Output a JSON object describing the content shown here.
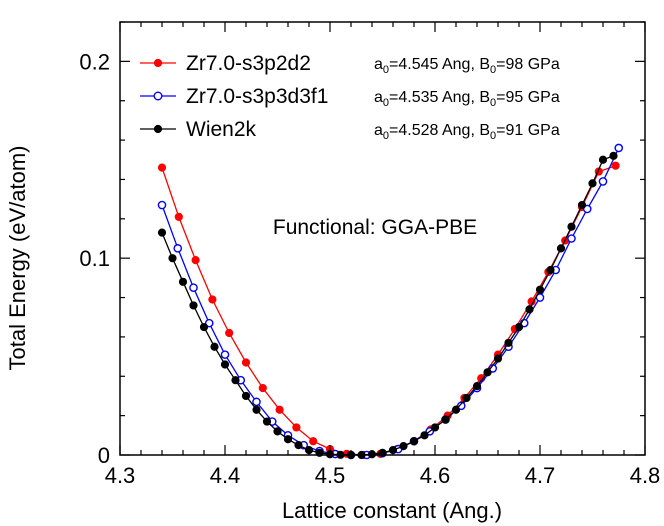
{
  "chart_data": {
    "type": "line",
    "xlabel": "Lattice constant (Ang.)",
    "ylabel": "Total Energy (eV/atom)",
    "xlim": [
      4.3,
      4.8
    ],
    "ylim": [
      0,
      0.22
    ],
    "xticks": [
      4.3,
      4.4,
      4.5,
      4.6,
      4.7,
      4.8
    ],
    "xtick_labels": [
      "4.3",
      "4.4",
      "4.5",
      "4.6",
      "4.7",
      "4.8"
    ],
    "yticks": [
      0,
      0.1,
      0.2
    ],
    "ytick_labels": [
      "0",
      "0.1",
      "0.2"
    ],
    "grid": false,
    "legend_position": "top-left",
    "annotation": "Functional: GGA-PBE",
    "series": [
      {
        "name": "Zr7.0-s3p2d2",
        "color": "#ff0000",
        "marker": "filled-circle",
        "a0": "4.545",
        "B0": "98",
        "x": [
          4.34,
          4.356,
          4.372,
          4.388,
          4.404,
          4.42,
          4.436,
          4.452,
          4.468,
          4.484,
          4.5,
          4.516,
          4.532,
          4.548,
          4.564,
          4.58,
          4.596,
          4.612,
          4.628,
          4.644,
          4.66,
          4.676,
          4.692,
          4.708,
          4.724,
          4.74,
          4.756,
          4.772
        ],
        "y": [
          0.146,
          0.121,
          0.099,
          0.079,
          0.062,
          0.047,
          0.034,
          0.023,
          0.014,
          0.007,
          0.003,
          0.0006,
          0.0,
          0.0006,
          0.003,
          0.007,
          0.013,
          0.02,
          0.029,
          0.039,
          0.051,
          0.064,
          0.078,
          0.093,
          0.109,
          0.126,
          0.144,
          0.147
        ]
      },
      {
        "name": "Zr7.0-s3p3d3f1",
        "color": "#0000ff",
        "marker": "open-circle",
        "a0": "4.535",
        "B0": "95",
        "x": [
          4.34,
          4.355,
          4.37,
          4.385,
          4.4,
          4.415,
          4.43,
          4.445,
          4.46,
          4.475,
          4.49,
          4.505,
          4.52,
          4.535,
          4.55,
          4.565,
          4.58,
          4.595,
          4.61,
          4.625,
          4.64,
          4.655,
          4.67,
          4.685,
          4.7,
          4.715,
          4.73,
          4.745,
          4.76,
          4.775
        ],
        "y": [
          0.127,
          0.105,
          0.085,
          0.067,
          0.051,
          0.038,
          0.027,
          0.017,
          0.01,
          0.005,
          0.002,
          0.0005,
          0.0,
          0.0,
          0.0009,
          0.003,
          0.007,
          0.012,
          0.018,
          0.025,
          0.034,
          0.044,
          0.055,
          0.067,
          0.08,
          0.094,
          0.11,
          0.125,
          0.139,
          0.156
        ]
      },
      {
        "name": "Wien2k",
        "color": "#000000",
        "marker": "filled-circle",
        "a0": "4.528",
        "B0": "91",
        "x": [
          4.34,
          4.35,
          4.36,
          4.37,
          4.38,
          4.39,
          4.4,
          4.41,
          4.42,
          4.43,
          4.44,
          4.45,
          4.46,
          4.47,
          4.48,
          4.49,
          4.5,
          4.51,
          4.52,
          4.53,
          4.54,
          4.55,
          4.56,
          4.57,
          4.58,
          4.59,
          4.6,
          4.61,
          4.62,
          4.63,
          4.64,
          4.65,
          4.66,
          4.67,
          4.68,
          4.69,
          4.7,
          4.71,
          4.72,
          4.73,
          4.74,
          4.75,
          4.76,
          4.77
        ],
        "y": [
          0.113,
          0.1,
          0.088,
          0.076,
          0.065,
          0.055,
          0.046,
          0.038,
          0.03,
          0.023,
          0.017,
          0.012,
          0.008,
          0.005,
          0.0025,
          0.0011,
          0.0004,
          0.0001,
          0.0,
          0.0,
          0.0004,
          0.0011,
          0.0025,
          0.0045,
          0.007,
          0.01,
          0.014,
          0.018,
          0.023,
          0.029,
          0.035,
          0.042,
          0.049,
          0.057,
          0.065,
          0.074,
          0.084,
          0.094,
          0.105,
          0.116,
          0.127,
          0.138,
          0.15,
          0.152
        ]
      }
    ]
  }
}
